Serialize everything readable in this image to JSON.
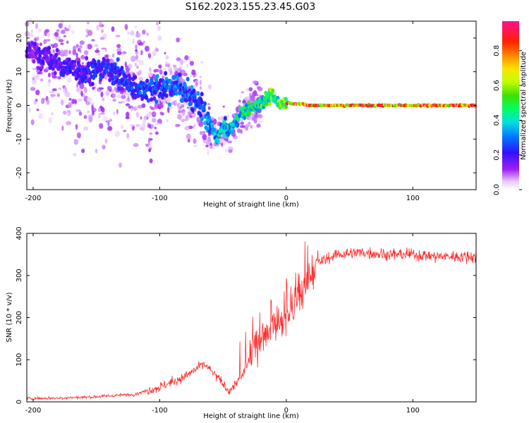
{
  "title": "S162.2023.155.23.45.G03",
  "colors": {
    "snr_line": "#ff2a2a",
    "axis": "#000000",
    "background": "#ffffff"
  },
  "chart_data": [
    {
      "type": "heatmap",
      "name": "spectrogram",
      "xlabel": "Height of straight line (km)",
      "ylabel": "Frequency (Hz)",
      "xlim": [
        -205,
        150
      ],
      "ylim": [
        -25,
        25
      ],
      "xticks": [
        -200,
        -100,
        0,
        100
      ],
      "yticks": [
        -20,
        -10,
        0,
        10,
        20
      ],
      "grid": false,
      "colorbar": {
        "label": "Normalized spectral amplitude",
        "range": [
          0.0,
          0.97
        ],
        "ticks": [
          0.0,
          0.2,
          0.4,
          0.6,
          0.8
        ],
        "colormap": "gist_ncar-like (white, purple, blue, cyan, green, yellow, orange, red, pink)"
      },
      "ridge": [
        {
          "x": -200,
          "y": 16
        },
        {
          "x": -180,
          "y": 12
        },
        {
          "x": -160,
          "y": 10
        },
        {
          "x": -140,
          "y": 11
        },
        {
          "x": -120,
          "y": 5
        },
        {
          "x": -100,
          "y": 5
        },
        {
          "x": -85,
          "y": 6
        },
        {
          "x": -75,
          "y": 2
        },
        {
          "x": -68,
          "y": 0
        },
        {
          "x": -60,
          "y": -6
        },
        {
          "x": -55,
          "y": -10
        },
        {
          "x": -50,
          "y": -6
        },
        {
          "x": -45,
          "y": -8
        },
        {
          "x": -40,
          "y": -5
        },
        {
          "x": -35,
          "y": -2
        },
        {
          "x": -28,
          "y": -1
        },
        {
          "x": -22,
          "y": 0
        },
        {
          "x": -15,
          "y": 2
        },
        {
          "x": -12,
          "y": 3
        },
        {
          "x": -8,
          "y": 1
        },
        {
          "x": 0,
          "y": 0.8
        },
        {
          "x": 20,
          "y": 0
        },
        {
          "x": 60,
          "y": 0
        },
        {
          "x": 100,
          "y": 0
        },
        {
          "x": 150,
          "y": 0
        }
      ]
    },
    {
      "type": "line",
      "name": "snr",
      "xlabel": "Height of straight line (km)",
      "ylabel": "SNR (10 * v/v)",
      "xlim": [
        -205,
        150
      ],
      "ylim": [
        0,
        400
      ],
      "xticks": [
        -200,
        -100,
        0,
        100
      ],
      "yticks": [
        0,
        100,
        200,
        300,
        400
      ],
      "grid": false,
      "series": [
        {
          "x": [
            -205,
            -180,
            -150,
            -120,
            -100,
            -80,
            -65,
            -55,
            -45,
            -35,
            -25,
            -15,
            -5,
            5,
            15,
            25,
            40,
            60,
            80,
            100,
            120,
            150
          ],
          "values": [
            8,
            9,
            12,
            18,
            35,
            60,
            90,
            60,
            25,
            60,
            130,
            170,
            180,
            220,
            270,
            330,
            350,
            355,
            350,
            350,
            345,
            345
          ]
        }
      ]
    }
  ]
}
